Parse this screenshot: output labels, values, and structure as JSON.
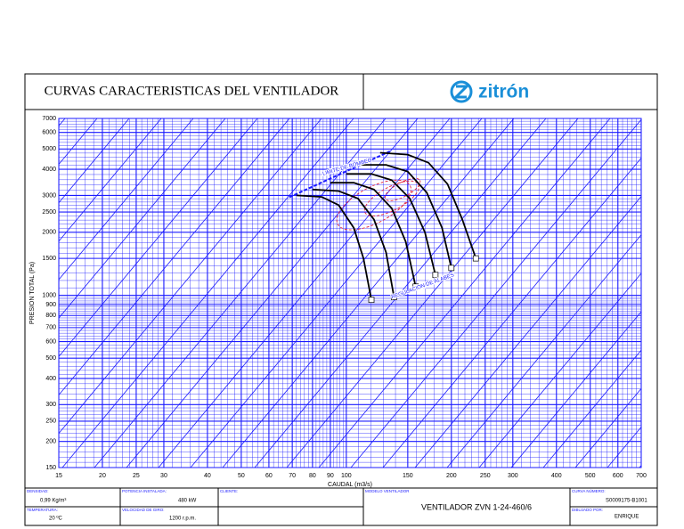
{
  "header": {
    "title": "CURVAS CARACTERISTICAS DEL VENTILADOR",
    "logo": "zitrón"
  },
  "chart_data": {
    "type": "line",
    "x_label": "CAUDAL (m3/s)",
    "y_label": "PRESION TOTAL (Pa)",
    "xscale": "log",
    "yscale": "log",
    "grid": true,
    "grid_color": "#1a1aff",
    "xlim": [
      15,
      700
    ],
    "ylim": [
      150,
      7000
    ],
    "xticks": [
      15,
      20,
      25,
      30,
      40,
      50,
      60,
      70,
      80,
      90,
      100,
      150,
      200,
      250,
      300,
      400,
      500,
      600,
      700
    ],
    "yticks": [
      150,
      200,
      250,
      300,
      400,
      500,
      600,
      700,
      800,
      900,
      1000,
      1500,
      2000,
      2500,
      3000,
      4000,
      5000,
      6000,
      7000
    ],
    "series": [
      {
        "color": "#000000",
        "x": [
          72,
          85,
          95,
          105,
          112,
          118
        ],
        "values": [
          3000,
          2950,
          2700,
          2100,
          1500,
          950
        ]
      },
      {
        "color": "#000000",
        "x": [
          80,
          95,
          108,
          120,
          130,
          137
        ],
        "values": [
          3200,
          3150,
          2900,
          2300,
          1600,
          980
        ]
      },
      {
        "color": "#000000",
        "x": [
          90,
          105,
          120,
          135,
          148,
          158
        ],
        "values": [
          3450,
          3450,
          3200,
          2600,
          1800,
          1100
        ]
      },
      {
        "color": "#000000",
        "x": [
          100,
          118,
          135,
          152,
          168,
          180
        ],
        "values": [
          3800,
          3800,
          3550,
          2900,
          2000,
          1250
        ]
      },
      {
        "color": "#000000",
        "x": [
          110,
          130,
          150,
          170,
          188,
          200
        ],
        "values": [
          4200,
          4200,
          3900,
          3100,
          2100,
          1350
        ]
      },
      {
        "color": "#000000",
        "x": [
          125,
          150,
          172,
          195,
          215,
          235
        ],
        "values": [
          4800,
          4700,
          4300,
          3400,
          2300,
          1500
        ]
      }
    ],
    "annotations": [
      "LIMITE DE BOMBEO",
      "REGULACION DE ALABES"
    ]
  },
  "footer": {
    "density_label": "DENSIDAD:",
    "density": "0,99 Kg/m³",
    "power_label": "POTENCIA INSTALADA:",
    "power": "480 kW",
    "client_label": "CLIENTE:",
    "model_label": "MODELO VENTILADOR",
    "model": "VENTILADOR ZVN 1-24-460/6",
    "curve_label": "CURVA NÚMERO:",
    "curve": "S0009175-B1001",
    "temp_label": "TEMPERATURA:",
    "temp": "20 ºC",
    "speed_label": "VELOCIDAD DE GIRO:",
    "speed": "1200 r.p.m.",
    "drawn_label": "DIBUJADO POR:",
    "drawn": "ENRIQUE"
  }
}
